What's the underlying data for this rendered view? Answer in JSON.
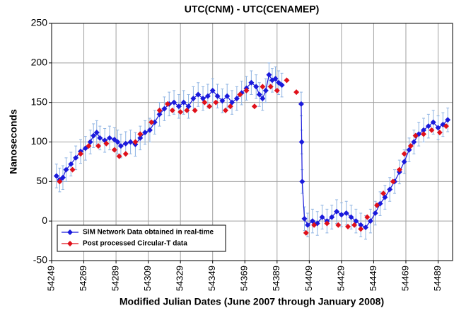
{
  "chart_data": {
    "type": "line",
    "title": "UTC(CNM) - UTC(CENAMEP)",
    "x_label": "Modified Julian Dates (June 2007 through January 2008)",
    "y_label": "Nanoseconds",
    "xlim": [
      54249,
      54498
    ],
    "xticks": [
      54249,
      54269,
      54289,
      54309,
      54329,
      54349,
      54369,
      54389,
      54409,
      54429,
      54449,
      54469,
      54489
    ],
    "ylim": [
      -50,
      250
    ],
    "yticks": [
      -50,
      0,
      50,
      100,
      150,
      200,
      250
    ],
    "grid": true,
    "legend": "lower left",
    "series": [
      {
        "name": "SIM Network Data obtained in real-time",
        "color": "#1a1adc",
        "line": true,
        "error": 15,
        "error_color": "#8fb4e3",
        "x": [
          54252,
          54254,
          54256,
          54258,
          54261,
          54264,
          54267,
          54270,
          54273,
          54275,
          54277,
          54279,
          54282,
          54285,
          54288,
          54290,
          54292,
          54295,
          54298,
          54301,
          54304,
          54307,
          54310,
          54313,
          54316,
          54319,
          54322,
          54325,
          54328,
          54331,
          54334,
          54337,
          54340,
          54343,
          54346,
          54349,
          54352,
          54355,
          54358,
          54361,
          54364,
          54367,
          54370,
          54373,
          54376,
          54378,
          54380,
          54382,
          54384,
          54386,
          54388,
          54390,
          54392,
          54398,
          54404,
          54404.3,
          54404.6,
          54406,
          54408,
          54411,
          54414,
          54417,
          54420,
          54423,
          54426,
          54429,
          54432,
          54435,
          54438,
          54441,
          54444,
          54447,
          54450,
          54453,
          54456,
          54459,
          54462,
          54465,
          54468,
          54471,
          54474,
          54477,
          54480,
          54483,
          54486,
          54489,
          54492,
          54495
        ],
        "values": [
          57,
          52,
          55,
          65,
          72,
          80,
          88,
          92,
          100,
          108,
          112,
          105,
          102,
          105,
          103,
          100,
          95,
          98,
          100,
          97,
          105,
          112,
          115,
          125,
          135,
          142,
          148,
          150,
          145,
          150,
          145,
          155,
          160,
          155,
          158,
          165,
          158,
          152,
          158,
          150,
          155,
          162,
          168,
          175,
          170,
          160,
          155,
          165,
          185,
          178,
          180,
          175,
          172,
          null,
          148,
          100,
          50,
          3,
          -5,
          0,
          -3,
          5,
          0,
          5,
          12,
          8,
          10,
          5,
          0,
          -5,
          -8,
          0,
          10,
          22,
          30,
          40,
          50,
          62,
          75,
          90,
          100,
          110,
          115,
          120,
          125,
          118,
          122,
          128
        ]
      },
      {
        "name": "Post processed Circular-T data",
        "color": "#e0101a",
        "line": false,
        "x": [
          54254,
          54262,
          54267,
          54272,
          54278,
          54283,
          54288,
          54291,
          54295,
          54301,
          54304,
          54311,
          54316,
          54321,
          54324,
          54329,
          54333,
          54338,
          54344,
          54347,
          54351,
          54357,
          54360,
          54366,
          54370,
          54375,
          54380,
          54385,
          54389,
          54395,
          54401,
          54407,
          54412,
          54420,
          54427,
          54433,
          54437,
          54441,
          54445,
          54451,
          54455,
          54461,
          54465,
          54468,
          54472,
          54475,
          54480,
          54485,
          54490,
          54494
        ],
        "values": [
          50,
          65,
          85,
          95,
          95,
          98,
          90,
          82,
          85,
          100,
          110,
          125,
          140,
          148,
          140,
          138,
          140,
          140,
          150,
          145,
          150,
          140,
          145,
          160,
          165,
          145,
          170,
          170,
          165,
          178,
          163,
          -15,
          -5,
          -3,
          -5,
          -7,
          -5,
          -10,
          5,
          20,
          35,
          50,
          65,
          85,
          95,
          108,
          110,
          115,
          112,
          120
        ]
      }
    ]
  }
}
